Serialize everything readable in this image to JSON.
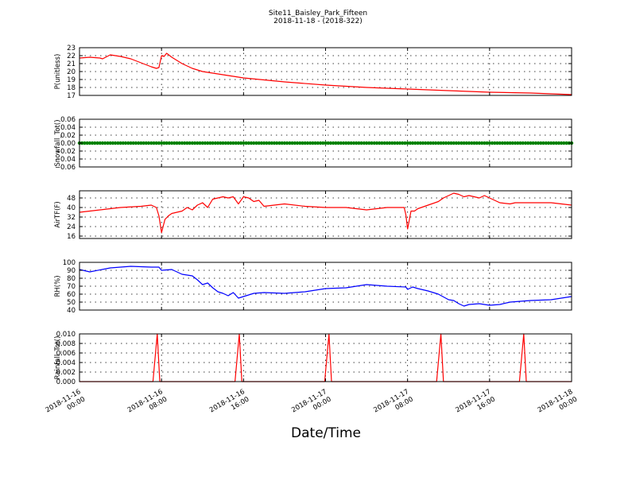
{
  "figure": {
    "title_line1": "Site11_Baisley_Park_Fifteen",
    "title_line2": "2018-11-18 - (2018-322)",
    "xlabel": "Date/Time",
    "x_ticks": [
      {
        "t": 0,
        "line1": "2018-11-16",
        "line2": "00:00"
      },
      {
        "t": 8,
        "line1": "2018-11-16",
        "line2": "08:00"
      },
      {
        "t": 16,
        "line1": "2018-11-16",
        "line2": "16:00"
      },
      {
        "t": 24,
        "line1": "2018-11-17",
        "line2": "00:00"
      },
      {
        "t": 32,
        "line1": "2018-11-17",
        "line2": "08:00"
      },
      {
        "t": 40,
        "line1": "2018-11-17",
        "line2": "16:00"
      },
      {
        "t": 48,
        "line1": "2018-11-18",
        "line2": "00:00"
      }
    ]
  },
  "chart_data": [
    {
      "type": "line",
      "ylabel": "P(unitless)",
      "color": "#ff0000",
      "ylim": [
        17,
        23
      ],
      "yticks": [
        17,
        18,
        19,
        20,
        21,
        22,
        23
      ],
      "yticklabels": [
        "17",
        "18",
        "19",
        "20",
        "21",
        "22",
        "23"
      ],
      "grid": true,
      "x": [
        "2018-11-16 00:00",
        "2018-11-16 01:00",
        "2018-11-16 02:00",
        "2018-11-16 02:15",
        "2018-11-16 03:00",
        "2018-11-16 04:00",
        "2018-11-16 05:00",
        "2018-11-16 06:00",
        "2018-11-16 07:00",
        "2018-11-16 07:30",
        "2018-11-16 07:45",
        "2018-11-16 08:00",
        "2018-11-16 08:15",
        "2018-11-16 08:30",
        "2018-11-16 09:00",
        "2018-11-16 10:00",
        "2018-11-16 11:00",
        "2018-11-16 12:00",
        "2018-11-16 14:00",
        "2018-11-16 16:00",
        "2018-11-16 20:00",
        "2018-11-17 00:00",
        "2018-11-17 04:00",
        "2018-11-17 08:00",
        "2018-11-17 12:00",
        "2018-11-17 16:00",
        "2018-11-17 20:00",
        "2018-11-18 00:00"
      ],
      "values": [
        21.7,
        21.8,
        21.7,
        21.6,
        22.1,
        21.9,
        21.6,
        21.1,
        20.6,
        20.4,
        20.5,
        22.0,
        21.9,
        22.3,
        21.8,
        21.0,
        20.4,
        20.0,
        19.6,
        19.2,
        18.7,
        18.3,
        18.0,
        17.8,
        17.6,
        17.4,
        17.3,
        17.1
      ]
    },
    {
      "type": "line",
      "ylabel": "Snowfall_Tot()",
      "color": "#008000",
      "ylim": [
        -0.06,
        0.06
      ],
      "yticks": [
        -0.06,
        -0.04,
        -0.02,
        0.0,
        0.02,
        0.04,
        0.06
      ],
      "yticklabels": [
        "−0.06",
        "−0.04",
        "−0.02",
        "0.00",
        "0.02",
        "0.04",
        "0.06"
      ],
      "grid": true,
      "x": [
        "2018-11-16 00:00",
        "2018-11-18 00:00"
      ],
      "values": [
        0,
        0
      ],
      "markers": "dense"
    },
    {
      "type": "line",
      "ylabel": "AirTF(F)",
      "color": "#ff0000",
      "ylim": [
        14,
        54
      ],
      "yticks": [
        16,
        24,
        32,
        40,
        48
      ],
      "yticklabels": [
        "16",
        "24",
        "32",
        "40",
        "48"
      ],
      "grid": true,
      "x": [
        "2018-11-16 00:00",
        "2018-11-16 02:00",
        "2018-11-16 04:00",
        "2018-11-16 06:00",
        "2018-11-16 07:00",
        "2018-11-16 07:30",
        "2018-11-16 07:45",
        "2018-11-16 08:00",
        "2018-11-16 08:20",
        "2018-11-16 08:40",
        "2018-11-16 09:00",
        "2018-11-16 10:00",
        "2018-11-16 10:30",
        "2018-11-16 11:00",
        "2018-11-16 11:30",
        "2018-11-16 12:00",
        "2018-11-16 12:30",
        "2018-11-16 13:00",
        "2018-11-16 13:30",
        "2018-11-16 14:00",
        "2018-11-16 14:30",
        "2018-11-16 15:00",
        "2018-11-16 15:30",
        "2018-11-16 16:00",
        "2018-11-16 16:30",
        "2018-11-16 17:00",
        "2018-11-16 17:30",
        "2018-11-16 18:00",
        "2018-11-16 20:00",
        "2018-11-16 22:00",
        "2018-11-17 00:00",
        "2018-11-17 02:00",
        "2018-11-17 04:00",
        "2018-11-17 06:00",
        "2018-11-17 07:40",
        "2018-11-17 07:50",
        "2018-11-17 08:00",
        "2018-11-17 08:20",
        "2018-11-17 08:40",
        "2018-11-17 09:00",
        "2018-11-17 10:00",
        "2018-11-17 11:00",
        "2018-11-17 11:30",
        "2018-11-17 12:00",
        "2018-11-17 12:30",
        "2018-11-17 13:00",
        "2018-11-17 13:30",
        "2018-11-17 14:00",
        "2018-11-17 14:30",
        "2018-11-17 15:00",
        "2018-11-17 15:30",
        "2018-11-17 16:00",
        "2018-11-17 16:30",
        "2018-11-17 17:00",
        "2018-11-17 18:00",
        "2018-11-17 18:30",
        "2018-11-17 20:00",
        "2018-11-17 22:00",
        "2018-11-18 00:00"
      ],
      "values": [
        36,
        38,
        40,
        41,
        42,
        40,
        33,
        19,
        30,
        33,
        35,
        37,
        40,
        38,
        42,
        44,
        40,
        47,
        48,
        49,
        48,
        49,
        43,
        49,
        48,
        45,
        46,
        41,
        43,
        41,
        40,
        40,
        38,
        40,
        40,
        34,
        22,
        37,
        37,
        39,
        42,
        45,
        48,
        50,
        52,
        51,
        49,
        50,
        49,
        48,
        50,
        48,
        46,
        44,
        43,
        44,
        44,
        44,
        42
      ]
    },
    {
      "type": "line",
      "ylabel": "RH(%)",
      "color": "#0000ff",
      "ylim": [
        40,
        100
      ],
      "yticks": [
        40,
        50,
        60,
        70,
        80,
        90,
        100
      ],
      "yticklabels": [
        "40",
        "50",
        "60",
        "70",
        "80",
        "90",
        "100"
      ],
      "grid": true,
      "x": [
        "2018-11-16 00:00",
        "2018-11-16 01:00",
        "2018-11-16 03:00",
        "2018-11-16 05:00",
        "2018-11-16 07:00",
        "2018-11-16 07:45",
        "2018-11-16 08:00",
        "2018-11-16 09:00",
        "2018-11-16 10:00",
        "2018-11-16 11:00",
        "2018-11-16 11:30",
        "2018-11-16 12:00",
        "2018-11-16 12:30",
        "2018-11-16 13:00",
        "2018-11-16 13:30",
        "2018-11-16 14:00",
        "2018-11-16 14:30",
        "2018-11-16 15:00",
        "2018-11-16 15:30",
        "2018-11-16 16:00",
        "2018-11-16 17:00",
        "2018-11-16 18:00",
        "2018-11-16 20:00",
        "2018-11-16 22:00",
        "2018-11-17 00:00",
        "2018-11-17 02:00",
        "2018-11-17 04:00",
        "2018-11-17 06:00",
        "2018-11-17 07:50",
        "2018-11-17 08:00",
        "2018-11-17 08:30",
        "2018-11-17 09:00",
        "2018-11-17 10:00",
        "2018-11-17 11:00",
        "2018-11-17 12:00",
        "2018-11-17 12:30",
        "2018-11-17 13:00",
        "2018-11-17 13:30",
        "2018-11-17 14:00",
        "2018-11-17 15:00",
        "2018-11-17 16:00",
        "2018-11-17 17:00",
        "2018-11-17 18:00",
        "2018-11-17 20:00",
        "2018-11-17 22:00",
        "2018-11-18 00:00"
      ],
      "values": [
        91,
        88,
        93,
        95,
        94,
        94,
        90,
        91,
        85,
        83,
        78,
        72,
        74,
        68,
        63,
        61,
        58,
        62,
        55,
        57,
        61,
        62,
        61,
        63,
        67,
        68,
        72,
        70,
        69,
        66,
        69,
        67,
        64,
        60,
        53,
        52,
        48,
        45,
        47,
        48,
        46,
        47,
        50,
        52,
        53,
        57
      ]
    },
    {
      "type": "line",
      "ylabel": "Rainfall_Tot()",
      "color": "#ff0000",
      "ylim": [
        0,
        0.01
      ],
      "yticks": [
        0.0,
        0.002,
        0.004,
        0.006,
        0.008,
        0.01
      ],
      "yticklabels": [
        "0.000",
        "0.002",
        "0.004",
        "0.006",
        "0.008",
        "0.010"
      ],
      "grid": true,
      "x": [
        "2018-11-16 00:00",
        "2018-11-16 07:10",
        "2018-11-16 07:35",
        "2018-11-16 07:50",
        "2018-11-16 15:10",
        "2018-11-16 15:35",
        "2018-11-16 15:50",
        "2018-11-16 23:55",
        "2018-11-17 00:20",
        "2018-11-17 00:35",
        "2018-11-17 10:50",
        "2018-11-17 11:15",
        "2018-11-17 11:30",
        "2018-11-17 18:55",
        "2018-11-17 19:20",
        "2018-11-17 19:35",
        "2018-11-18 00:00"
      ],
      "values": [
        0,
        0,
        0.01,
        0,
        0,
        0.01,
        0,
        0,
        0.01,
        0,
        0,
        0.01,
        0,
        0,
        0.01,
        0,
        0
      ]
    }
  ]
}
